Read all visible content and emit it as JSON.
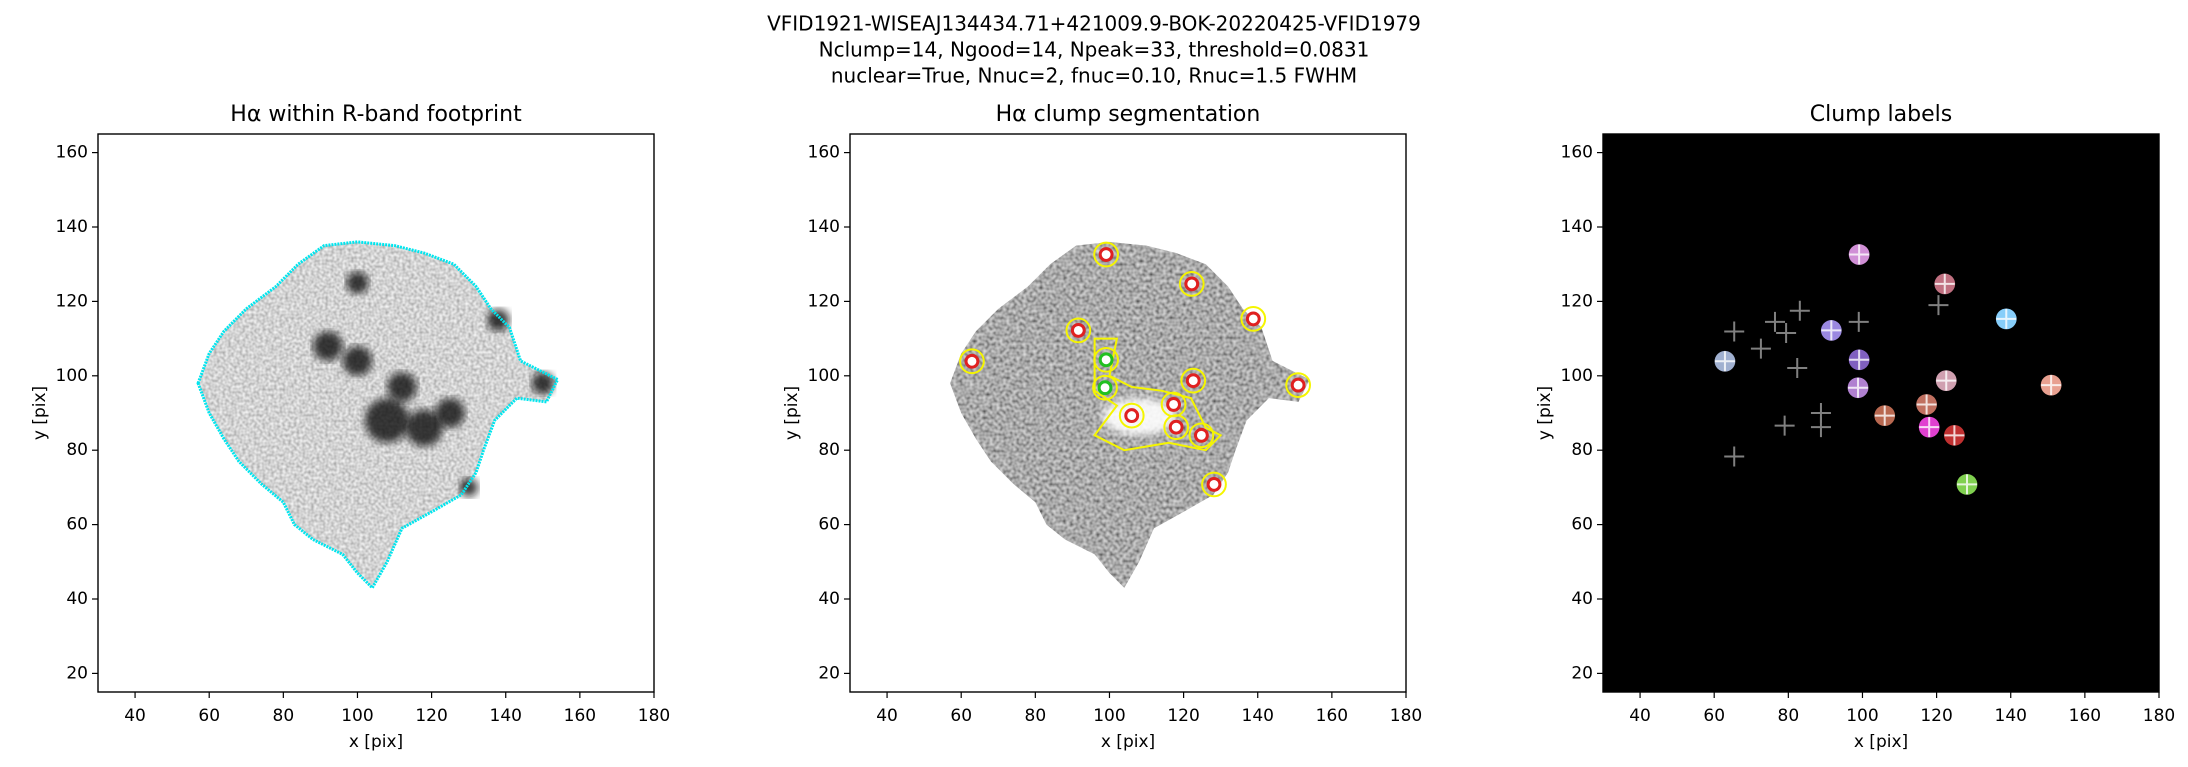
{
  "figure_title": [
    "VFID1921-WISEAJ134434.71+421009.9-BOK-20220425-VFID1979",
    "Nclump=14, Ngood=14, Npeak=33, threshold=0.0831",
    "nuclear=True, Nnuc=2, fnuc=0.10, Rnuc=1.5 FWHM"
  ],
  "chart_data": [
    {
      "type": "image",
      "title": "Hα within R-band footprint",
      "xlabel": "x [pix]",
      "ylabel": "y [pix]",
      "xlim": [
        30,
        180
      ],
      "ylim": [
        15,
        165
      ],
      "xticks": [
        40,
        60,
        80,
        100,
        120,
        140,
        160,
        180
      ],
      "yticks": [
        20,
        40,
        60,
        80,
        100,
        120,
        140,
        160
      ],
      "background": "#ffffff",
      "contour_color": "#00e5ee",
      "series": []
    },
    {
      "type": "image",
      "title": "Hα clump segmentation",
      "xlabel": "x [pix]",
      "ylabel": "y [pix]",
      "xlim": [
        30,
        180
      ],
      "ylim": [
        15,
        165
      ],
      "xticks": [
        40,
        60,
        80,
        100,
        120,
        140,
        160,
        180
      ],
      "yticks": [
        20,
        40,
        60,
        80,
        100,
        120,
        140,
        160
      ],
      "background": "#ffffff",
      "contour_color": "#f5f500",
      "series": [
        {
          "marker": "ring",
          "x": [
            99.1,
            122.2,
            138.8,
            91.6,
            62.9,
            99.1,
            122.6,
            150.9,
            98.8,
            117.3,
            106.0,
            118.0,
            124.8,
            128.2
          ],
          "y": [
            132.6,
            124.7,
            115.3,
            112.2,
            103.9,
            104.3,
            98.7,
            97.5,
            96.8,
            92.3,
            89.3,
            86.2,
            84.0,
            70.8
          ],
          "colors": [
            "#e02020",
            "#e02020",
            "#e02020",
            "#e02020",
            "#e02020",
            "#20c020",
            "#e02020",
            "#e02020",
            "#20c020",
            "#e02020",
            "#e02020",
            "#e02020",
            "#e02020",
            "#e02020"
          ]
        }
      ]
    },
    {
      "type": "image",
      "title": "Clump labels",
      "xlabel": "x [pix]",
      "ylabel": "y [pix]",
      "xlim": [
        30,
        180
      ],
      "ylim": [
        15,
        165
      ],
      "xticks": [
        40,
        60,
        80,
        100,
        120,
        140,
        160,
        180
      ],
      "yticks": [
        20,
        40,
        60,
        80,
        100,
        120,
        140,
        160
      ],
      "background": "#000000",
      "series": [
        {
          "marker": "blob",
          "x": [
            99.1,
            122.2,
            138.8,
            91.6,
            62.9,
            99.1,
            122.6,
            150.9,
            98.8,
            117.3,
            106.0,
            118.0,
            124.8,
            128.2
          ],
          "y": [
            132.6,
            124.7,
            115.3,
            112.2,
            103.9,
            104.3,
            98.7,
            97.5,
            96.8,
            92.3,
            89.3,
            86.2,
            84.0,
            70.8
          ],
          "colors": [
            "#d08fd6",
            "#c07080",
            "#87cefa",
            "#9a88e0",
            "#a0b0d0",
            "#8060c0",
            "#d0a0b0",
            "#e8a090",
            "#b080d0",
            "#c07060",
            "#b86850",
            "#e040d0",
            "#c03030",
            "#80d050"
          ]
        },
        {
          "marker": "cross",
          "color": "#808080",
          "x": [
            65.4,
            72.6,
            76.4,
            79.4,
            83.1,
            82.4,
            88.8,
            88.8,
            79.0,
            65.4,
            99.0,
            120.5
          ],
          "y": [
            111.9,
            107.3,
            114.5,
            111.5,
            117.5,
            102.1,
            90.0,
            86.2,
            86.6,
            78.3,
            114.5,
            119.0
          ]
        }
      ]
    }
  ]
}
